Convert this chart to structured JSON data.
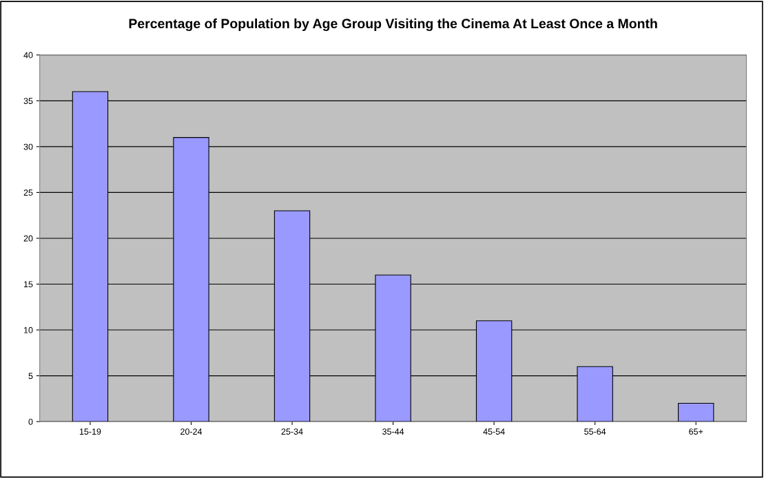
{
  "chart_data": {
    "type": "bar",
    "title": "Percentage of Population by Age Group Visiting the Cinema At Least Once a Month",
    "categories": [
      "15-19",
      "20-24",
      "25-34",
      "35-44",
      "45-54",
      "55-64",
      "65+"
    ],
    "values": [
      36,
      31,
      23,
      16,
      11,
      6,
      2
    ],
    "color": "#9999ff",
    "ylim": [
      0,
      40
    ],
    "yticks": [
      0,
      5,
      10,
      15,
      20,
      25,
      30,
      35,
      40
    ],
    "grid": "y",
    "legend": false
  }
}
